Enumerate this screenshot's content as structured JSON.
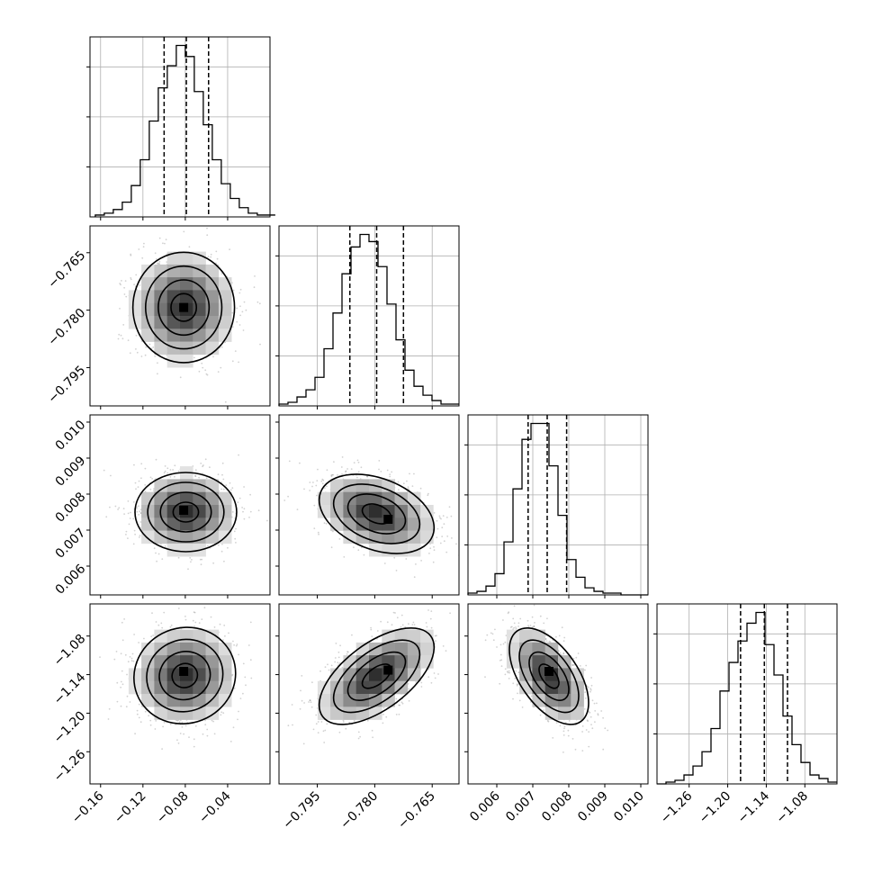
{
  "chart_data": {
    "type": "corner",
    "parameters": [
      {
        "range": [
          -0.17,
          0.0
        ],
        "ticks": [
          -0.16,
          -0.12,
          -0.08,
          -0.04
        ],
        "tick_labels": [
          "−0.16",
          "−0.12",
          "−0.08",
          "−0.04"
        ],
        "quantiles": [
          -0.1,
          -0.079,
          -0.058
        ],
        "hist_start": -0.165,
        "hist_step": 0.0085,
        "hist_counts": [
          1,
          2,
          4,
          8,
          17,
          31,
          52,
          70,
          82,
          93,
          87,
          68,
          50,
          31,
          18,
          10,
          5,
          2,
          1,
          1
        ]
      },
      {
        "range": [
          -0.805,
          -0.758
        ],
        "ticks": [
          -0.795,
          -0.78,
          -0.765
        ],
        "tick_labels": [
          "−0.795",
          "−0.780",
          "−0.765"
        ],
        "quantiles": [
          -0.7865,
          -0.7795,
          -0.7725
        ],
        "hist_start": -0.805,
        "hist_step": 0.00235,
        "hist_counts": [
          1,
          2,
          5,
          9,
          16,
          32,
          52,
          74,
          89,
          96,
          92,
          78,
          57,
          37,
          20,
          11,
          6,
          3,
          1,
          1
        ]
      },
      {
        "range": [
          0.0052,
          0.0102
        ],
        "ticks": [
          0.006,
          0.007,
          0.008,
          0.009,
          0.01
        ],
        "tick_labels": [
          "0.006",
          "0.007",
          "0.008",
          "0.009",
          "0.010"
        ],
        "quantiles": [
          0.00687,
          0.0074,
          0.00794
        ],
        "hist_start": 0.0052,
        "hist_step": 0.00025,
        "hist_counts": [
          1,
          2,
          5,
          12,
          30,
          60,
          88,
          97,
          97,
          73,
          45,
          20,
          10,
          4,
          2,
          1,
          1,
          0,
          0,
          0
        ]
      },
      {
        "range": [
          -1.31,
          -1.03
        ],
        "ticks": [
          -1.26,
          -1.2,
          -1.14,
          -1.08
        ],
        "tick_labels": [
          "−1.26",
          "−1.20",
          "−1.14",
          "−1.08"
        ],
        "quantiles": [
          -1.18,
          -1.143,
          -1.107
        ],
        "hist_start": -1.31,
        "hist_step": 0.014,
        "hist_counts": [
          0,
          1,
          2,
          5,
          10,
          18,
          31,
          52,
          68,
          80,
          90,
          96,
          78,
          61,
          38,
          22,
          12,
          5,
          3,
          1
        ]
      }
    ],
    "pairs": [
      {
        "row": 1,
        "col": 0,
        "center": [
          -0.0815,
          -0.7793
        ],
        "sx": 0.024,
        "sy": 0.0072,
        "rho": 0.0,
        "peak": [
          -0.0815,
          -0.7793
        ]
      },
      {
        "row": 2,
        "col": 0,
        "center": [
          -0.0795,
          0.0075
        ],
        "sx": 0.024,
        "sy": 0.00055,
        "rho": 0.0,
        "peak": [
          -0.0815,
          0.00755
        ]
      },
      {
        "row": 2,
        "col": 1,
        "center": [
          -0.7795,
          0.00745
        ],
        "sx": 0.0075,
        "sy": 0.00055,
        "rho": -0.35,
        "peak": [
          -0.7765,
          0.0073
        ]
      },
      {
        "row": 3,
        "col": 0,
        "center": [
          -0.0805,
          -1.1415
        ],
        "sx": 0.024,
        "sy": 0.0375,
        "rho": 0.05,
        "peak": [
          -0.0815,
          -1.135
        ]
      },
      {
        "row": 3,
        "col": 1,
        "center": [
          -0.7795,
          -1.1425
        ],
        "sx": 0.0075,
        "sy": 0.0375,
        "rho": 0.6,
        "peak": [
          -0.7765,
          -1.133
        ]
      },
      {
        "row": 3,
        "col": 2,
        "center": [
          0.00745,
          -1.1425
        ],
        "sx": 0.00055,
        "sy": 0.0375,
        "rho": -0.55,
        "peak": [
          0.00745,
          -1.135
        ]
      }
    ],
    "contour_levels_sigma": [
      0.5,
      1.0,
      1.5,
      2.0
    ]
  }
}
